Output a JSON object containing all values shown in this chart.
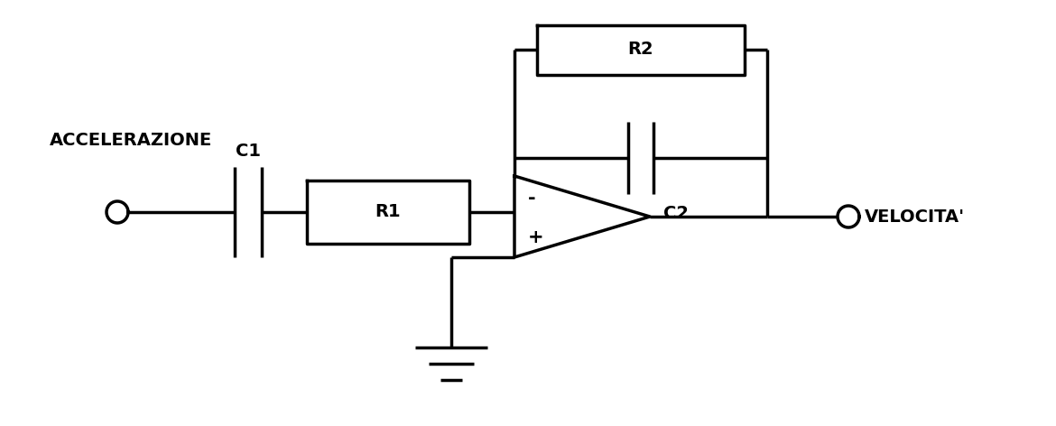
{
  "bg_color": "#ffffff",
  "line_color": "#000000",
  "line_width": 2.5,
  "fig_width": 11.7,
  "fig_height": 4.72,
  "label_accel": "ACCELERAZIONE",
  "label_veloc": "VELOCITA'",
  "label_c1": "C1",
  "label_r1": "R1",
  "label_r2": "R2",
  "label_c2": "C2",
  "label_minus": "-",
  "label_plus": "+",
  "font_size": 14,
  "font_family": "DejaVu Sans"
}
